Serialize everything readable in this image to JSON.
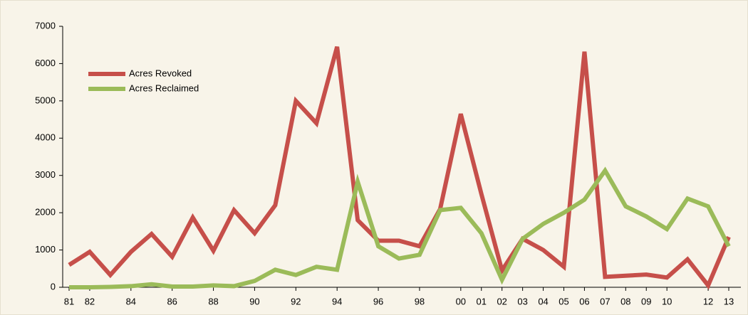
{
  "chart_data": {
    "type": "line",
    "categories": [
      "81",
      "82",
      null,
      "84",
      null,
      "86",
      null,
      "88",
      null,
      "90",
      null,
      "92",
      null,
      "94",
      null,
      "96",
      null,
      "98",
      null,
      "00",
      "01",
      "02",
      "03",
      "04",
      "05",
      "06",
      "07",
      "08",
      "09",
      "10",
      null,
      "12",
      "13"
    ],
    "series": [
      {
        "name": "Acres Revoked",
        "color": "#c64f4a",
        "values": [
          600,
          950,
          330,
          950,
          1430,
          820,
          1870,
          980,
          2070,
          1450,
          2200,
          5000,
          4400,
          6450,
          1800,
          1250,
          1250,
          1100,
          2100,
          4650,
          2500,
          450,
          1300,
          1000,
          550,
          6320,
          280,
          310,
          340,
          260,
          750,
          50,
          1350
        ]
      },
      {
        "name": "Acres Reclaimed",
        "color": "#9bbb59",
        "values": [
          0,
          0,
          10,
          30,
          80,
          20,
          20,
          50,
          30,
          170,
          470,
          330,
          550,
          470,
          2830,
          1100,
          770,
          870,
          2070,
          2130,
          1450,
          200,
          1300,
          1700,
          2000,
          2350,
          3130,
          2170,
          1900,
          1560,
          2380,
          2170,
          1100
        ]
      }
    ],
    "ylim": [
      0,
      7000
    ],
    "yticks": [
      0,
      1000,
      2000,
      3000,
      4000,
      5000,
      6000,
      7000
    ],
    "legend": "upper left"
  }
}
